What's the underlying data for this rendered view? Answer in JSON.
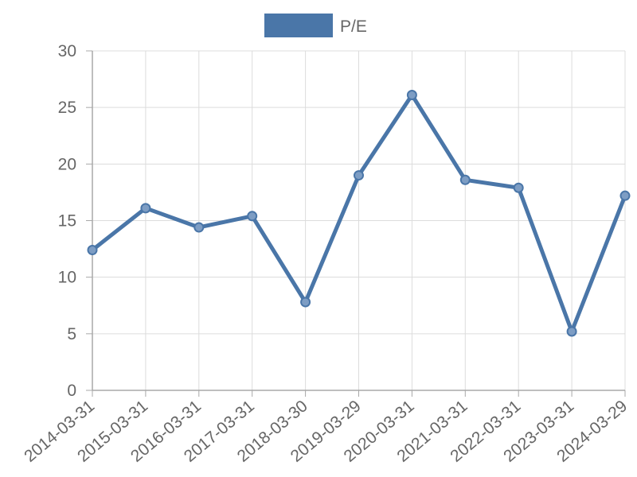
{
  "chart_data": {
    "type": "line",
    "x": [
      "2014-03-31",
      "2015-03-31",
      "2016-03-31",
      "2017-03-31",
      "2018-03-30",
      "2019-03-29",
      "2020-03-31",
      "2021-03-31",
      "2022-03-31",
      "2023-03-31",
      "2024-03-29"
    ],
    "series": [
      {
        "name": "P/E",
        "values": [
          12.4,
          16.1,
          14.4,
          15.4,
          7.8,
          19.0,
          26.1,
          18.6,
          17.9,
          5.2,
          17.2
        ],
        "color": "#4a76a8",
        "point_fill": "#7d9dc4"
      }
    ],
    "ylim": [
      0,
      30
    ],
    "yticks": [
      0,
      5,
      10,
      15,
      20,
      25,
      30
    ],
    "xlabel": "",
    "ylabel": "",
    "grid": true,
    "legend_position": "top-center",
    "colors": {
      "grid": "#dcdcdc",
      "axis": "#a8a8a8",
      "text": "#666666"
    }
  }
}
